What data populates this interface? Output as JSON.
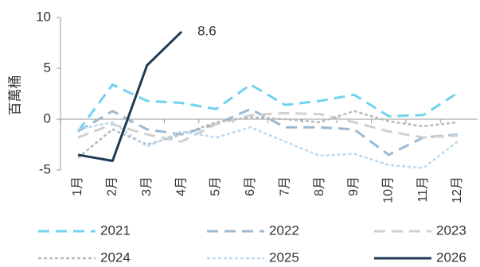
{
  "chart_data": {
    "type": "line",
    "y_label": "百萬桶",
    "categories": [
      "1月",
      "2月",
      "3月",
      "4月",
      "5月",
      "6月",
      "7月",
      "8月",
      "9月",
      "10月",
      "11月",
      "12月"
    ],
    "series": [
      {
        "name": "2021",
        "color": "#6fd3f0",
        "dash": "dashed",
        "values": [
          -1.2,
          3.4,
          1.8,
          1.6,
          1.0,
          3.4,
          1.4,
          1.8,
          2.4,
          0.3,
          0.4,
          2.6
        ]
      },
      {
        "name": "2022",
        "color": "#9bb9d2",
        "dash": "dashed",
        "values": [
          -1.2,
          0.8,
          -1.0,
          -1.5,
          -0.5,
          1.0,
          -0.8,
          -0.8,
          -1.0,
          -3.5,
          -1.8,
          -1.5
        ]
      },
      {
        "name": "2023",
        "color": "#d0d0d0",
        "dash": "dashed",
        "values": [
          -1.8,
          -0.5,
          -1.5,
          -2.2,
          -0.5,
          0.4,
          0.6,
          0.5,
          -0.3,
          -1.2,
          -1.8,
          -1.6
        ]
      },
      {
        "name": "2024",
        "color": "#b8b8b8",
        "dash": "dotted",
        "values": [
          -3.8,
          -1.0,
          -2.5,
          -1.5,
          -0.3,
          0.2,
          0.0,
          -0.3,
          0.8,
          -0.2,
          -0.7,
          -0.3
        ]
      },
      {
        "name": "2025",
        "color": "#b9d9f2",
        "dash": "dotted",
        "values": [
          -1.0,
          -0.3,
          -2.7,
          -1.2,
          -1.8,
          -0.8,
          -2.2,
          -3.6,
          -3.4,
          -4.5,
          -4.8,
          -2.2
        ]
      },
      {
        "name": "2026",
        "color": "#1f3a52",
        "dash": "solid",
        "values": [
          -3.5,
          -4.1,
          5.3,
          8.6,
          null,
          null,
          null,
          null,
          null,
          null,
          null,
          null
        ]
      }
    ],
    "ylim": [
      -5,
      10
    ],
    "yticks": [
      -5,
      0,
      5,
      10
    ]
  }
}
